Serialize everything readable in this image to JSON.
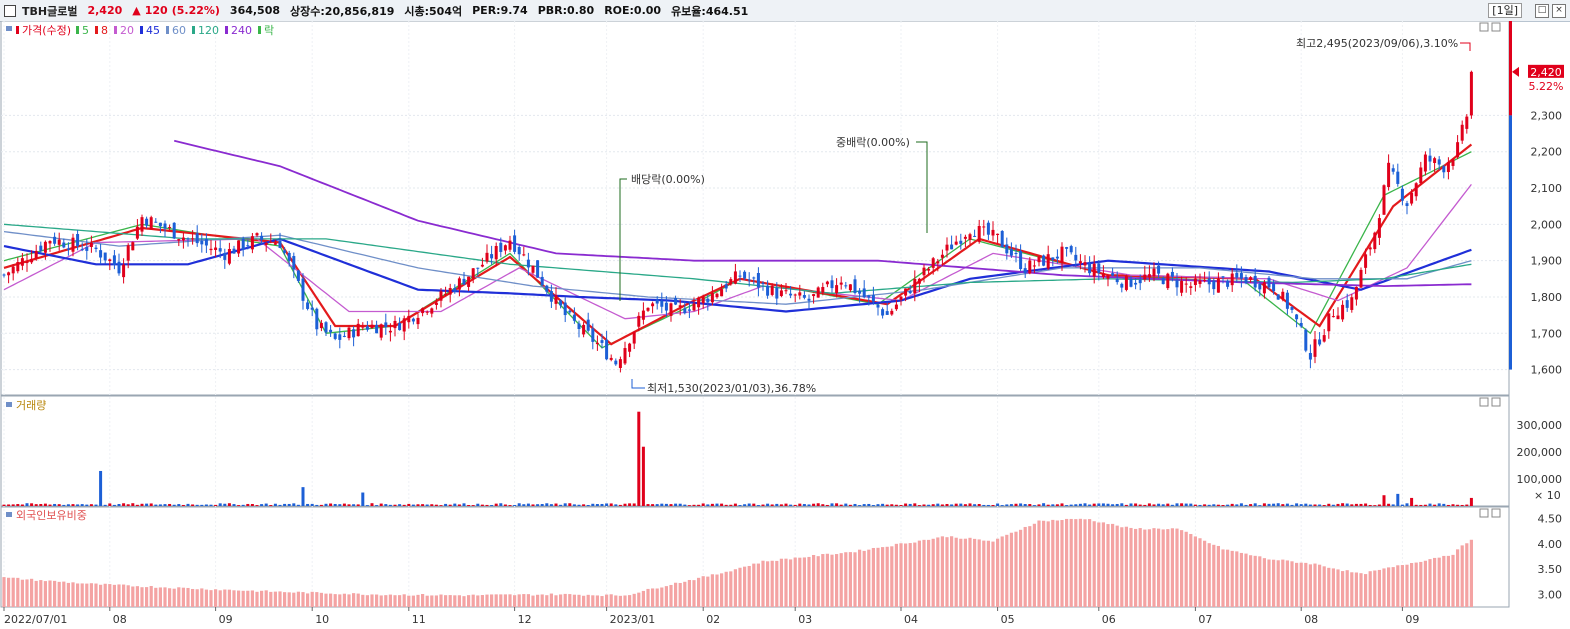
{
  "header": {
    "name": "TBH글로벌",
    "price": "2,420",
    "change_arrow": "▲",
    "change": "120",
    "change_pct": "(5.22%)",
    "volume": "364,508",
    "listed": "상장수:20,856,819",
    "market_cap": "시총:504억",
    "per": "PER:9.74",
    "pbr": "PBR:0.80",
    "roe": "ROE:0.00",
    "float": "유보율:464.51",
    "period": "[1일]"
  },
  "colors": {
    "up": "#e0001b",
    "down": "#1c5fd6",
    "ma5": "#3ab54a",
    "ma8": "#e31a1c",
    "ma20": "#c45bd0",
    "ma45": "#1f2fd8",
    "ma60": "#6f8fc8",
    "ma120": "#2aa888",
    "ma240": "#8a2bd0",
    "foreign": "#f4a3a3"
  },
  "chart_data": [
    {
      "type": "candlestick",
      "panel": "price",
      "legend": [
        {
          "label": "가격(수정)",
          "color": "#e0001b"
        },
        {
          "label": "5",
          "color": "#3ab54a"
        },
        {
          "label": "8",
          "color": "#e31a1c"
        },
        {
          "label": "20",
          "color": "#c45bd0"
        },
        {
          "label": "45",
          "color": "#1f2fd8"
        },
        {
          "label": "60",
          "color": "#6f8fc8"
        },
        {
          "label": "120",
          "color": "#2aa888"
        },
        {
          "label": "240",
          "color": "#8a2bd0"
        },
        {
          "label": "락",
          "color": "#3ab54a"
        }
      ],
      "x_labels": [
        "2022/07/01",
        "08",
        "09",
        "10",
        "11",
        "12",
        "2023/01",
        "02",
        "03",
        "04",
        "05",
        "06",
        "07",
        "08",
        "09"
      ],
      "y_ticks": [
        1600,
        1700,
        1800,
        1900,
        2000,
        2100,
        2200,
        2300
      ],
      "ylim": [
        1530,
        2560
      ],
      "current_price": 2420,
      "current_price_label": "2,420",
      "current_pct_label": "5.22%",
      "close_anchors": [
        [
          0,
          1860
        ],
        [
          10,
          1960
        ],
        [
          20,
          1930
        ],
        [
          25,
          1880
        ],
        [
          30,
          2020
        ],
        [
          40,
          1960
        ],
        [
          48,
          1920
        ],
        [
          55,
          1960
        ],
        [
          60,
          1950
        ],
        [
          63,
          1860
        ],
        [
          68,
          1720
        ],
        [
          72,
          1680
        ],
        [
          78,
          1720
        ],
        [
          85,
          1720
        ],
        [
          95,
          1800
        ],
        [
          103,
          1880
        ],
        [
          110,
          1960
        ],
        [
          115,
          1880
        ],
        [
          122,
          1750
        ],
        [
          130,
          1660
        ],
        [
          133,
          1620
        ],
        [
          140,
          1780
        ],
        [
          146,
          1760
        ],
        [
          153,
          1800
        ],
        [
          160,
          1860
        ],
        [
          168,
          1810
        ],
        [
          175,
          1790
        ],
        [
          182,
          1850
        ],
        [
          188,
          1790
        ],
        [
          192,
          1750
        ],
        [
          198,
          1840
        ],
        [
          205,
          1930
        ],
        [
          210,
          1990
        ],
        [
          216,
          1960
        ],
        [
          222,
          1880
        ],
        [
          230,
          1920
        ],
        [
          236,
          1880
        ],
        [
          244,
          1840
        ],
        [
          250,
          1860
        ],
        [
          258,
          1830
        ],
        [
          264,
          1840
        ],
        [
          270,
          1850
        ],
        [
          276,
          1830
        ],
        [
          280,
          1760
        ],
        [
          284,
          1640
        ],
        [
          289,
          1760
        ],
        [
          293,
          1790
        ],
        [
          298,
          1980
        ],
        [
          301,
          2150
        ],
        [
          305,
          2060
        ],
        [
          309,
          2180
        ],
        [
          313,
          2160
        ],
        [
          316,
          2210
        ],
        [
          318,
          2300
        ],
        [
          319,
          2420
        ]
      ],
      "moving_averages": [
        {
          "name": "5",
          "color": "#3ab54a",
          "points": [
            [
              0,
              1900
            ],
            [
              30,
              2000
            ],
            [
              60,
              1940
            ],
            [
              70,
              1700
            ],
            [
              85,
              1720
            ],
            [
              110,
              1920
            ],
            [
              130,
              1660
            ],
            [
              150,
              1780
            ],
            [
              160,
              1850
            ],
            [
              190,
              1780
            ],
            [
              210,
              1960
            ],
            [
              240,
              1860
            ],
            [
              270,
              1840
            ],
            [
              284,
              1700
            ],
            [
              300,
              2080
            ],
            [
              319,
              2200
            ]
          ]
        },
        {
          "name": "8",
          "color": "#e31a1c",
          "points": [
            [
              0,
              1880
            ],
            [
              30,
              1990
            ],
            [
              60,
              1950
            ],
            [
              72,
              1720
            ],
            [
              85,
              1720
            ],
            [
              110,
              1910
            ],
            [
              132,
              1670
            ],
            [
              150,
              1790
            ],
            [
              160,
              1850
            ],
            [
              192,
              1780
            ],
            [
              212,
              1960
            ],
            [
              240,
              1860
            ],
            [
              272,
              1850
            ],
            [
              286,
              1720
            ],
            [
              302,
              2050
            ],
            [
              319,
              2220
            ]
          ]
        },
        {
          "name": "20",
          "color": "#c45bd0",
          "points": [
            [
              0,
              1820
            ],
            [
              20,
              1950
            ],
            [
              55,
              1960
            ],
            [
              75,
              1760
            ],
            [
              95,
              1760
            ],
            [
              112,
              1880
            ],
            [
              135,
              1740
            ],
            [
              150,
              1760
            ],
            [
              165,
              1830
            ],
            [
              195,
              1790
            ],
            [
              215,
              1920
            ],
            [
              245,
              1860
            ],
            [
              275,
              1850
            ],
            [
              290,
              1790
            ],
            [
              305,
              1880
            ],
            [
              319,
              2110
            ]
          ]
        },
        {
          "name": "45",
          "color": "#1f2fd8",
          "points": [
            [
              0,
              1940
            ],
            [
              20,
              1890
            ],
            [
              40,
              1890
            ],
            [
              60,
              1960
            ],
            [
              90,
              1820
            ],
            [
              110,
              1810
            ],
            [
              125,
              1800
            ],
            [
              145,
              1790
            ],
            [
              170,
              1760
            ],
            [
              195,
              1790
            ],
            [
              210,
              1850
            ],
            [
              240,
              1900
            ],
            [
              275,
              1870
            ],
            [
              295,
              1820
            ],
            [
              319,
              1930
            ]
          ]
        },
        {
          "name": "60",
          "color": "#6f8fc8",
          "points": [
            [
              0,
              1980
            ],
            [
              25,
              1940
            ],
            [
              60,
              1970
            ],
            [
              90,
              1880
            ],
            [
              115,
              1830
            ],
            [
              140,
              1800
            ],
            [
              170,
              1780
            ],
            [
              200,
              1820
            ],
            [
              230,
              1880
            ],
            [
              260,
              1880
            ],
            [
              285,
              1850
            ],
            [
              305,
              1850
            ],
            [
              319,
              1900
            ]
          ]
        },
        {
          "name": "120",
          "color": "#2aa888",
          "points": [
            [
              0,
              2000
            ],
            [
              40,
              1960
            ],
            [
              70,
              1960
            ],
            [
              110,
              1890
            ],
            [
              150,
              1850
            ],
            [
              180,
              1810
            ],
            [
              210,
              1840
            ],
            [
              240,
              1850
            ],
            [
              280,
              1840
            ],
            [
              300,
              1850
            ],
            [
              319,
              1890
            ]
          ]
        },
        {
          "name": "240",
          "color": "#8a2bd0",
          "points": [
            [
              37,
              2230
            ],
            [
              60,
              2160
            ],
            [
              90,
              2010
            ],
            [
              120,
              1920
            ],
            [
              150,
              1900
            ],
            [
              190,
              1900
            ],
            [
              230,
              1860
            ],
            [
              270,
              1840
            ],
            [
              300,
              1830
            ],
            [
              319,
              1835
            ]
          ]
        }
      ],
      "annotations": [
        {
          "text": "최고2,495(2023/09/06),3.10%",
          "kind": "high"
        },
        {
          "text": "배당락(0.00%)",
          "kind": "event"
        },
        {
          "text": "중배락(0.00%)",
          "kind": "event"
        },
        {
          "text": "최저1,530(2023/01/03),36.78%",
          "kind": "low"
        }
      ]
    },
    {
      "type": "bar",
      "panel": "volume",
      "label": "거래량",
      "y_ticks": [
        "300,000",
        "200,000",
        "100,000"
      ],
      "y_tick_values": [
        300000,
        200000,
        100000
      ],
      "unit_label": "× 10",
      "ylim": [
        0,
        360000
      ],
      "spikes": [
        [
          21,
          130000
        ],
        [
          65,
          70000
        ],
        [
          78,
          50000
        ],
        [
          138,
          350000
        ],
        [
          139,
          220000
        ],
        [
          300,
          40000
        ],
        [
          303,
          45000
        ],
        [
          306,
          30000
        ],
        [
          319,
          30000
        ]
      ],
      "baseline": 8000
    },
    {
      "type": "bar",
      "panel": "foreign",
      "label": "외국인보유비중",
      "y_ticks": [
        "4.50",
        "4.00",
        "3.50",
        "3.00"
      ],
      "y_tick_values": [
        4.5,
        4.0,
        3.5,
        3.0
      ],
      "ylim": [
        2.75,
        4.65
      ],
      "anchors": [
        [
          0,
          3.33
        ],
        [
          20,
          3.2
        ],
        [
          40,
          3.12
        ],
        [
          60,
          3.05
        ],
        [
          80,
          3.0
        ],
        [
          100,
          2.98
        ],
        [
          120,
          3.0
        ],
        [
          135,
          2.98
        ],
        [
          145,
          3.2
        ],
        [
          155,
          3.4
        ],
        [
          165,
          3.65
        ],
        [
          175,
          3.75
        ],
        [
          185,
          3.85
        ],
        [
          195,
          4.0
        ],
        [
          205,
          4.15
        ],
        [
          215,
          4.05
        ],
        [
          225,
          4.45
        ],
        [
          235,
          4.5
        ],
        [
          245,
          4.3
        ],
        [
          255,
          4.3
        ],
        [
          265,
          3.9
        ],
        [
          275,
          3.7
        ],
        [
          285,
          3.6
        ],
        [
          295,
          3.4
        ],
        [
          305,
          3.6
        ],
        [
          315,
          3.8
        ],
        [
          319,
          4.1
        ]
      ]
    }
  ]
}
